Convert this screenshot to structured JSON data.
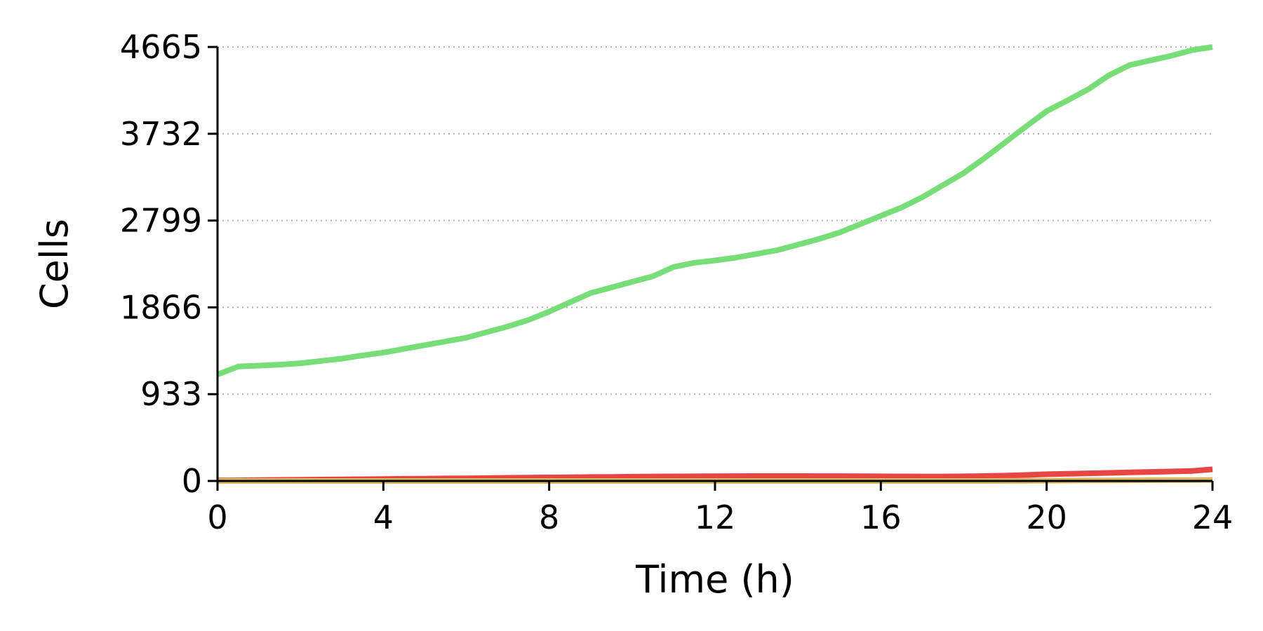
{
  "chart_data": {
    "type": "line",
    "title": "",
    "xlabel": "Time (h)",
    "ylabel": "Cells",
    "xlim": [
      0,
      24
    ],
    "ylim": [
      0,
      4665
    ],
    "xticks": [
      "0",
      "4",
      "8",
      "12",
      "16",
      "20",
      "24"
    ],
    "yticks": [
      "0",
      "933",
      "1866",
      "2799",
      "3732",
      "4665"
    ],
    "grid": "horizontal dotted",
    "legend": "none",
    "x": [
      0,
      0.5,
      1,
      1.5,
      2,
      2.5,
      3,
      3.5,
      4,
      4.5,
      5,
      5.5,
      6,
      6.5,
      7,
      7.5,
      8,
      8.5,
      9,
      9.5,
      10,
      10.5,
      11,
      11.5,
      12,
      12.5,
      13,
      13.5,
      14,
      14.5,
      15,
      15.5,
      16,
      16.5,
      17,
      17.5,
      18,
      18.5,
      19,
      19.5,
      20,
      20.5,
      21,
      21.5,
      22,
      22.5,
      23,
      23.5,
      24
    ],
    "series": [
      {
        "color": "#77dd77",
        "values": [
          1145,
          1230,
          1240,
          1250,
          1265,
          1290,
          1315,
          1350,
          1380,
          1420,
          1460,
          1500,
          1540,
          1600,
          1660,
          1730,
          1820,
          1920,
          2020,
          2080,
          2140,
          2200,
          2300,
          2345,
          2370,
          2400,
          2440,
          2480,
          2540,
          2600,
          2670,
          2760,
          2850,
          2940,
          3050,
          3180,
          3310,
          3470,
          3640,
          3810,
          3975,
          4090,
          4210,
          4360,
          4470,
          4520,
          4570,
          4630,
          4665
        ]
      },
      {
        "color": "#e84545",
        "values": [
          5,
          7,
          9,
          11,
          13,
          15,
          17,
          19,
          21,
          23,
          25,
          27,
          29,
          31,
          34,
          36,
          38,
          40,
          42,
          44,
          46,
          48,
          49,
          50,
          51,
          52,
          53,
          53,
          53,
          52,
          52,
          51,
          50,
          49,
          48,
          48,
          50,
          53,
          57,
          64,
          72,
          77,
          82,
          87,
          92,
          97,
          102,
          108,
          125
        ]
      },
      {
        "color": "#d9b860",
        "values": [
          0,
          0,
          0,
          0,
          0,
          0,
          0,
          0,
          0,
          0,
          0,
          0,
          0,
          0,
          0,
          0,
          0,
          0,
          0,
          0,
          0,
          0,
          0,
          0,
          0,
          0,
          0,
          0,
          0,
          0,
          0,
          0,
          0,
          0,
          0,
          0,
          0,
          0,
          1,
          2,
          3,
          4,
          5,
          6,
          7,
          8,
          9,
          10,
          11
        ]
      }
    ]
  }
}
